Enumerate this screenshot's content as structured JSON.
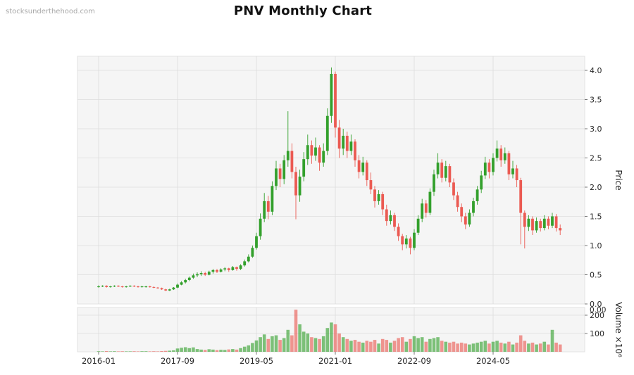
{
  "watermark": "stocksunderthehood.com",
  "title": "PNV Monthly Chart",
  "chart_data": {
    "type": "candlestick",
    "symbol": "PNV",
    "interval": "Monthly",
    "title": "PNV Monthly Chart",
    "legend_position": "none",
    "grid": true,
    "x_axis": {
      "tick_labels": [
        "2016-01",
        "2017-09",
        "2019-05",
        "2021-01",
        "2022-09",
        "2024-05"
      ],
      "tick_month_indices": [
        0,
        20,
        40,
        60,
        80,
        100
      ]
    },
    "price_axis": {
      "label": "Price",
      "ticks": [
        "4.0",
        "3.5",
        "3.0",
        "2.5",
        "2.0",
        "1.5",
        "1.0",
        "0.5",
        "0.0"
      ],
      "range": [
        0,
        4.24
      ]
    },
    "volume_axis": {
      "label": "Volume ×10⁶",
      "ticks": [
        "200",
        "100"
      ],
      "origin_label": "0.00",
      "range": [
        0,
        242
      ]
    },
    "colors": {
      "up": "#33a02c",
      "down": "#eb5a52",
      "grid": "#dcdcdc",
      "panel_bg": "#f5f5f5",
      "panel_border": "#e2e2e2",
      "text": "#262626"
    },
    "ohlcv_columns": [
      "month",
      "open",
      "high",
      "low",
      "close",
      "volume_millions"
    ],
    "ohlcv": [
      [
        "2016-01",
        0.29,
        0.32,
        0.28,
        0.3,
        3
      ],
      [
        "2016-02",
        0.3,
        0.32,
        0.29,
        0.31,
        2
      ],
      [
        "2016-03",
        0.31,
        0.32,
        0.28,
        0.29,
        4
      ],
      [
        "2016-04",
        0.29,
        0.31,
        0.28,
        0.3,
        2
      ],
      [
        "2016-05",
        0.3,
        0.32,
        0.29,
        0.31,
        3
      ],
      [
        "2016-06",
        0.31,
        0.32,
        0.29,
        0.3,
        2
      ],
      [
        "2016-07",
        0.3,
        0.31,
        0.28,
        0.29,
        3
      ],
      [
        "2016-08",
        0.29,
        0.31,
        0.28,
        0.3,
        2
      ],
      [
        "2016-09",
        0.3,
        0.32,
        0.29,
        0.31,
        2
      ],
      [
        "2016-10",
        0.31,
        0.32,
        0.29,
        0.3,
        3
      ],
      [
        "2016-11",
        0.3,
        0.31,
        0.28,
        0.29,
        2
      ],
      [
        "2016-12",
        0.29,
        0.31,
        0.28,
        0.3,
        3
      ],
      [
        "2017-01",
        0.3,
        0.31,
        0.28,
        0.3,
        3
      ],
      [
        "2017-02",
        0.3,
        0.31,
        0.28,
        0.29,
        2
      ],
      [
        "2017-03",
        0.29,
        0.3,
        0.27,
        0.28,
        3
      ],
      [
        "2017-04",
        0.28,
        0.29,
        0.26,
        0.27,
        2
      ],
      [
        "2017-05",
        0.27,
        0.28,
        0.24,
        0.25,
        4
      ],
      [
        "2017-06",
        0.25,
        0.26,
        0.22,
        0.23,
        5
      ],
      [
        "2017-07",
        0.23,
        0.26,
        0.22,
        0.25,
        6
      ],
      [
        "2017-08",
        0.25,
        0.29,
        0.24,
        0.28,
        8
      ],
      [
        "2017-09",
        0.28,
        0.35,
        0.27,
        0.33,
        18
      ],
      [
        "2017-10",
        0.33,
        0.39,
        0.32,
        0.37,
        22
      ],
      [
        "2017-11",
        0.37,
        0.43,
        0.35,
        0.41,
        25
      ],
      [
        "2017-12",
        0.41,
        0.47,
        0.39,
        0.45,
        20
      ],
      [
        "2018-01",
        0.45,
        0.52,
        0.43,
        0.49,
        24
      ],
      [
        "2018-02",
        0.49,
        0.54,
        0.46,
        0.51,
        15
      ],
      [
        "2018-03",
        0.51,
        0.56,
        0.48,
        0.53,
        12
      ],
      [
        "2018-04",
        0.53,
        0.55,
        0.48,
        0.5,
        10
      ],
      [
        "2018-05",
        0.5,
        0.57,
        0.49,
        0.55,
        14
      ],
      [
        "2018-06",
        0.55,
        0.6,
        0.52,
        0.58,
        12
      ],
      [
        "2018-07",
        0.58,
        0.6,
        0.53,
        0.55,
        9
      ],
      [
        "2018-08",
        0.55,
        0.61,
        0.54,
        0.59,
        11
      ],
      [
        "2018-09",
        0.59,
        0.63,
        0.56,
        0.61,
        10
      ],
      [
        "2018-10",
        0.61,
        0.62,
        0.55,
        0.58,
        13
      ],
      [
        "2018-11",
        0.58,
        0.65,
        0.57,
        0.63,
        15
      ],
      [
        "2018-12",
        0.63,
        0.64,
        0.57,
        0.6,
        12
      ],
      [
        "2019-01",
        0.6,
        0.68,
        0.58,
        0.66,
        20
      ],
      [
        "2019-02",
        0.66,
        0.76,
        0.64,
        0.73,
        28
      ],
      [
        "2019-03",
        0.73,
        0.85,
        0.71,
        0.81,
        35
      ],
      [
        "2019-04",
        0.81,
        1.0,
        0.79,
        0.96,
        48
      ],
      [
        "2019-05",
        0.96,
        1.22,
        0.93,
        1.16,
        62
      ],
      [
        "2019-06",
        1.16,
        1.55,
        1.1,
        1.46,
        80
      ],
      [
        "2019-07",
        1.46,
        1.9,
        1.4,
        1.76,
        95
      ],
      [
        "2019-08",
        1.76,
        1.85,
        1.45,
        1.58,
        70
      ],
      [
        "2019-09",
        1.58,
        2.1,
        1.52,
        2.02,
        85
      ],
      [
        "2019-10",
        2.02,
        2.45,
        1.95,
        2.32,
        90
      ],
      [
        "2019-11",
        2.32,
        2.4,
        2.0,
        2.14,
        65
      ],
      [
        "2019-12",
        2.14,
        2.55,
        2.05,
        2.46,
        75
      ],
      [
        "2020-01",
        2.46,
        3.3,
        2.35,
        2.62,
        120
      ],
      [
        "2020-02",
        2.62,
        2.75,
        2.15,
        2.26,
        90
      ],
      [
        "2020-03",
        2.26,
        2.35,
        1.45,
        1.86,
        230
      ],
      [
        "2020-04",
        1.86,
        2.3,
        1.75,
        2.18,
        150
      ],
      [
        "2020-05",
        2.18,
        2.6,
        2.1,
        2.48,
        110
      ],
      [
        "2020-06",
        2.48,
        2.9,
        2.38,
        2.72,
        100
      ],
      [
        "2020-07",
        2.72,
        2.8,
        2.4,
        2.54,
        80
      ],
      [
        "2020-08",
        2.54,
        2.85,
        2.45,
        2.68,
        75
      ],
      [
        "2020-09",
        2.68,
        2.72,
        2.28,
        2.42,
        70
      ],
      [
        "2020-10",
        2.42,
        2.75,
        2.35,
        2.62,
        85
      ],
      [
        "2020-11",
        2.62,
        3.35,
        2.55,
        3.22,
        130
      ],
      [
        "2020-12",
        3.22,
        4.05,
        3.1,
        3.94,
        160
      ],
      [
        "2021-01",
        3.94,
        3.98,
        2.85,
        3.02,
        150
      ],
      [
        "2021-02",
        3.02,
        3.15,
        2.5,
        2.66,
        100
      ],
      [
        "2021-03",
        2.66,
        3.0,
        2.55,
        2.88,
        80
      ],
      [
        "2021-04",
        2.88,
        2.95,
        2.5,
        2.62,
        70
      ],
      [
        "2021-05",
        2.62,
        2.9,
        2.55,
        2.78,
        60
      ],
      [
        "2021-06",
        2.78,
        2.82,
        2.35,
        2.46,
        65
      ],
      [
        "2021-07",
        2.46,
        2.55,
        2.15,
        2.26,
        55
      ],
      [
        "2021-08",
        2.26,
        2.52,
        2.2,
        2.42,
        50
      ],
      [
        "2021-09",
        2.42,
        2.46,
        2.02,
        2.12,
        60
      ],
      [
        "2021-10",
        2.12,
        2.25,
        1.88,
        1.96,
        55
      ],
      [
        "2021-11",
        1.96,
        2.02,
        1.65,
        1.76,
        65
      ],
      [
        "2021-12",
        1.76,
        1.95,
        1.7,
        1.88,
        45
      ],
      [
        "2022-01",
        1.88,
        1.92,
        1.52,
        1.62,
        70
      ],
      [
        "2022-02",
        1.62,
        1.7,
        1.34,
        1.42,
        65
      ],
      [
        "2022-03",
        1.42,
        1.6,
        1.36,
        1.52,
        50
      ],
      [
        "2022-04",
        1.52,
        1.56,
        1.25,
        1.32,
        60
      ],
      [
        "2022-05",
        1.32,
        1.38,
        1.08,
        1.16,
        75
      ],
      [
        "2022-06",
        1.16,
        1.2,
        0.92,
        1.02,
        80
      ],
      [
        "2022-07",
        1.02,
        1.18,
        0.95,
        1.12,
        55
      ],
      [
        "2022-08",
        1.12,
        1.15,
        0.85,
        0.96,
        70
      ],
      [
        "2022-09",
        0.96,
        1.28,
        0.92,
        1.22,
        85
      ],
      [
        "2022-10",
        1.22,
        1.52,
        1.18,
        1.46,
        75
      ],
      [
        "2022-11",
        1.46,
        1.8,
        1.4,
        1.72,
        80
      ],
      [
        "2022-12",
        1.72,
        1.78,
        1.48,
        1.56,
        55
      ],
      [
        "2023-01",
        1.56,
        1.98,
        1.52,
        1.92,
        70
      ],
      [
        "2023-02",
        1.92,
        2.3,
        1.85,
        2.22,
        75
      ],
      [
        "2023-03",
        2.22,
        2.58,
        2.15,
        2.42,
        80
      ],
      [
        "2023-04",
        2.42,
        2.48,
        2.08,
        2.16,
        60
      ],
      [
        "2023-05",
        2.16,
        2.45,
        2.1,
        2.36,
        55
      ],
      [
        "2023-06",
        2.36,
        2.4,
        2.0,
        2.08,
        50
      ],
      [
        "2023-07",
        2.08,
        2.15,
        1.78,
        1.86,
        55
      ],
      [
        "2023-08",
        1.86,
        1.92,
        1.58,
        1.66,
        45
      ],
      [
        "2023-09",
        1.66,
        1.72,
        1.4,
        1.5,
        50
      ],
      [
        "2023-10",
        1.5,
        1.56,
        1.28,
        1.36,
        45
      ],
      [
        "2023-11",
        1.36,
        1.62,
        1.32,
        1.56,
        40
      ],
      [
        "2023-12",
        1.56,
        1.82,
        1.5,
        1.76,
        45
      ],
      [
        "2024-01",
        1.76,
        2.02,
        1.7,
        1.96,
        50
      ],
      [
        "2024-02",
        1.96,
        2.28,
        1.9,
        2.2,
        55
      ],
      [
        "2024-03",
        2.2,
        2.52,
        2.14,
        2.42,
        60
      ],
      [
        "2024-04",
        2.42,
        2.48,
        2.15,
        2.26,
        45
      ],
      [
        "2024-05",
        2.26,
        2.58,
        2.2,
        2.5,
        55
      ],
      [
        "2024-06",
        2.5,
        2.8,
        2.44,
        2.66,
        60
      ],
      [
        "2024-07",
        2.66,
        2.72,
        2.35,
        2.46,
        50
      ],
      [
        "2024-08",
        2.46,
        2.68,
        2.4,
        2.58,
        45
      ],
      [
        "2024-09",
        2.58,
        2.62,
        2.12,
        2.22,
        55
      ],
      [
        "2024-10",
        2.22,
        2.45,
        2.15,
        2.32,
        40
      ],
      [
        "2024-11",
        2.32,
        2.38,
        2.0,
        2.12,
        50
      ],
      [
        "2024-12",
        2.12,
        2.16,
        1.02,
        1.56,
        90
      ],
      [
        "2025-01",
        1.56,
        1.6,
        0.95,
        1.32,
        60
      ],
      [
        "2025-02",
        1.32,
        1.52,
        1.25,
        1.46,
        45
      ],
      [
        "2025-03",
        1.46,
        1.5,
        1.18,
        1.26,
        50
      ],
      [
        "2025-04",
        1.26,
        1.48,
        1.22,
        1.42,
        40
      ],
      [
        "2025-05",
        1.42,
        1.46,
        1.24,
        1.3,
        45
      ],
      [
        "2025-06",
        1.3,
        1.52,
        1.26,
        1.46,
        55
      ],
      [
        "2025-07",
        1.46,
        1.5,
        1.28,
        1.34,
        40
      ],
      [
        "2025-08",
        1.34,
        1.56,
        1.3,
        1.5,
        120
      ],
      [
        "2025-09",
        1.5,
        1.54,
        1.24,
        1.3,
        50
      ],
      [
        "2025-10",
        1.3,
        1.36,
        1.18,
        1.26,
        40
      ]
    ]
  }
}
